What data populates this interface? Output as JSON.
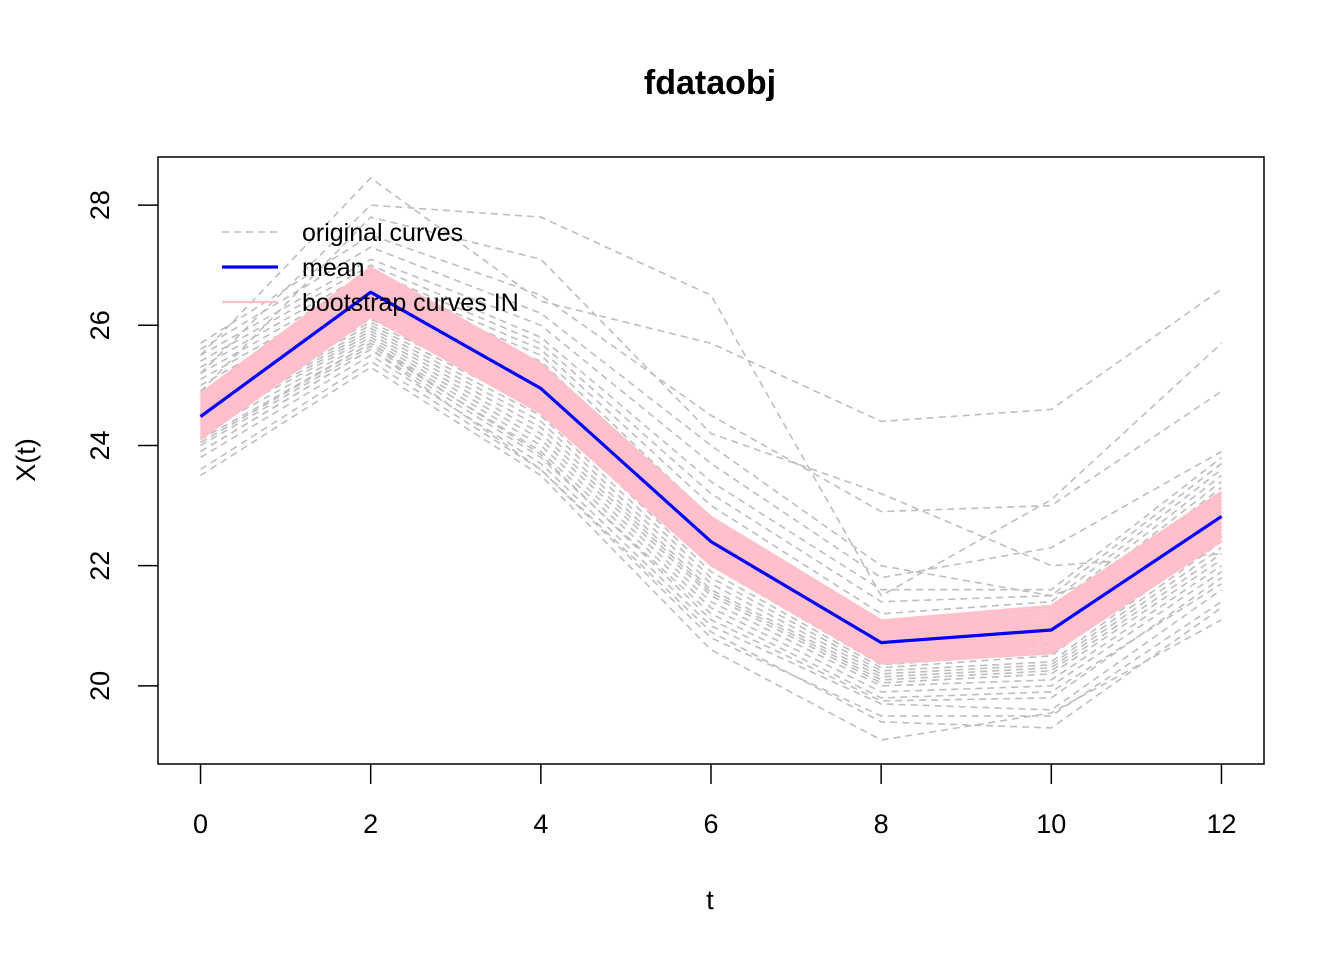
{
  "chart_data": {
    "type": "line",
    "title": "fdataobj",
    "xlabel": "t",
    "ylabel": "X(t)",
    "x": [
      0,
      2,
      4,
      6,
      8,
      10,
      12
    ],
    "xlim": [
      -0.5,
      12.5
    ],
    "ylim": [
      18.7,
      28.8
    ],
    "x_ticks": [
      0,
      2,
      4,
      6,
      8,
      10,
      12
    ],
    "y_ticks": [
      20,
      22,
      24,
      26,
      28
    ],
    "grid": false,
    "legend": {
      "placement": "top-left",
      "entries": [
        {
          "label": "original curves",
          "style": "dashed",
          "color": "#bebebe"
        },
        {
          "label": "mean",
          "style": "solid",
          "color": "#0000ff"
        },
        {
          "label": "bootstrap curves IN",
          "style": "solid",
          "color": "#ffc0cb"
        }
      ]
    },
    "colors": {
      "original": "#bebebe",
      "mean": "#0000ff",
      "bootstrap": "#ffc0cb"
    },
    "mean": {
      "name": "mean",
      "values": [
        24.48,
        26.55,
        24.95,
        22.4,
        20.72,
        20.93,
        22.82
      ]
    },
    "bootstrap_band": {
      "name": "bootstrap curves IN",
      "upper": [
        24.85,
        26.95,
        25.35,
        22.8,
        21.08,
        21.32,
        23.22
      ],
      "lower": [
        24.12,
        26.15,
        24.55,
        22.02,
        20.38,
        20.55,
        22.42
      ]
    },
    "original_curves": [
      [
        23.5,
        25.3,
        23.5,
        20.6,
        19.1,
        19.55,
        21.1
      ],
      [
        23.6,
        25.4,
        23.6,
        20.9,
        19.4,
        19.3,
        21.3
      ],
      [
        23.8,
        25.5,
        23.7,
        21.0,
        19.7,
        19.6,
        21.6
      ],
      [
        23.9,
        25.6,
        23.8,
        21.2,
        19.8,
        19.9,
        21.7
      ],
      [
        24.0,
        25.65,
        23.9,
        21.3,
        19.9,
        20.0,
        21.9
      ],
      [
        24.1,
        25.7,
        24.0,
        21.4,
        20.0,
        20.1,
        22.0
      ],
      [
        24.2,
        25.75,
        24.1,
        21.5,
        20.05,
        20.2,
        22.1
      ],
      [
        24.3,
        25.8,
        24.2,
        21.55,
        20.1,
        20.25,
        22.2
      ],
      [
        24.35,
        25.85,
        24.3,
        21.6,
        20.15,
        20.3,
        22.3
      ],
      [
        24.4,
        25.9,
        24.4,
        21.7,
        20.2,
        20.35,
        22.4
      ],
      [
        24.45,
        25.95,
        24.5,
        21.8,
        20.25,
        20.4,
        22.5
      ],
      [
        24.55,
        26.0,
        24.6,
        21.9,
        20.3,
        20.5,
        22.6
      ],
      [
        24.6,
        26.05,
        24.7,
        22.0,
        20.35,
        20.55,
        22.7
      ],
      [
        24.65,
        26.1,
        24.8,
        22.1,
        20.4,
        20.6,
        22.8
      ],
      [
        24.7,
        26.15,
        24.9,
        22.2,
        20.5,
        20.7,
        22.9
      ],
      [
        24.75,
        26.2,
        25.0,
        22.3,
        20.55,
        20.8,
        23.0
      ],
      [
        24.8,
        26.3,
        25.1,
        22.4,
        20.6,
        20.9,
        23.1
      ],
      [
        24.85,
        26.4,
        25.2,
        22.5,
        20.7,
        21.0,
        23.2
      ],
      [
        24.9,
        26.5,
        25.3,
        22.6,
        20.8,
        21.1,
        23.3
      ],
      [
        25.0,
        26.6,
        25.4,
        22.7,
        20.9,
        21.2,
        23.4
      ],
      [
        25.1,
        26.7,
        25.5,
        22.8,
        21.0,
        21.3,
        23.5
      ],
      [
        25.2,
        26.8,
        25.6,
        23.0,
        21.2,
        21.4,
        23.6
      ],
      [
        25.3,
        26.9,
        25.7,
        23.2,
        21.4,
        21.5,
        23.7
      ],
      [
        25.4,
        27.0,
        25.8,
        23.4,
        21.6,
        21.6,
        23.8
      ],
      [
        25.5,
        27.1,
        26.0,
        23.7,
        21.8,
        22.3,
        23.9
      ],
      [
        25.6,
        27.3,
        26.2,
        24.0,
        22.0,
        21.5,
        22.5
      ],
      [
        25.7,
        27.5,
        26.5,
        24.5,
        22.9,
        23.0,
        24.9
      ],
      [
        24.9,
        27.8,
        27.1,
        24.2,
        23.2,
        22.0,
        22.2
      ],
      [
        25.2,
        28.0,
        27.8,
        26.5,
        21.5,
        23.1,
        25.7
      ],
      [
        25.5,
        28.45,
        26.4,
        25.7,
        24.4,
        24.6,
        26.6
      ],
      [
        23.9,
        25.6,
        23.6,
        20.8,
        19.5,
        19.5,
        21.4
      ],
      [
        24.05,
        25.7,
        23.85,
        21.1,
        19.75,
        19.8,
        21.8
      ]
    ]
  }
}
